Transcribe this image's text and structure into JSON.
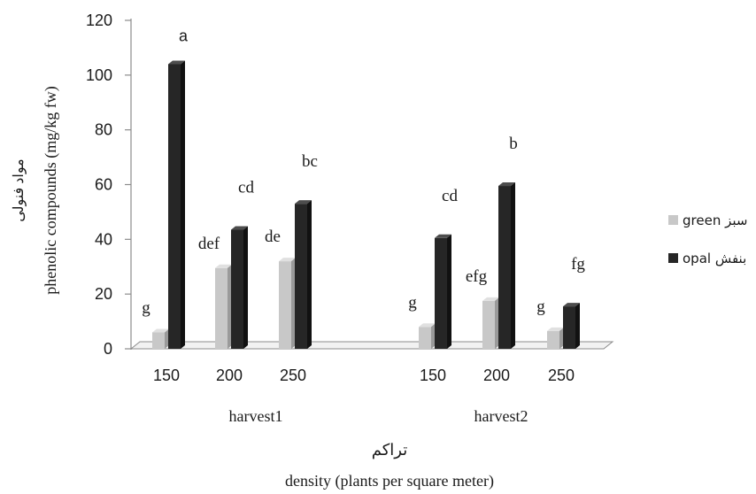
{
  "chart_data": {
    "type": "bar",
    "ylabel_fa": "مواد فنولی",
    "ylabel": "phenolic compounds (mg/kg fw)",
    "xlabel_fa": "تراکم",
    "xlabel": "density (plants per square meter)",
    "ylim": [
      0,
      120
    ],
    "yticks": [
      "0",
      "20",
      "40",
      "60",
      "80",
      "100",
      "120"
    ],
    "groups": [
      {
        "name": "harvest1",
        "categories": [
          "150",
          "200",
          "250"
        ]
      },
      {
        "name": "harvest2",
        "categories": [
          "150",
          "200",
          "250"
        ]
      }
    ],
    "series": [
      {
        "name": "green سبز",
        "color": "#c8c8c8",
        "values": [
          6,
          29.5,
          32,
          8,
          17.5,
          6.5
        ],
        "letters": [
          "g",
          "def",
          "de",
          "g",
          "efg",
          "g"
        ]
      },
      {
        "name": "opal بنفش",
        "color": "#262626",
        "values": [
          104,
          43.5,
          53,
          40.5,
          59.5,
          15.5
        ],
        "letters": [
          "a",
          "cd",
          "bc",
          "cd",
          "b",
          "fg"
        ]
      }
    ]
  }
}
